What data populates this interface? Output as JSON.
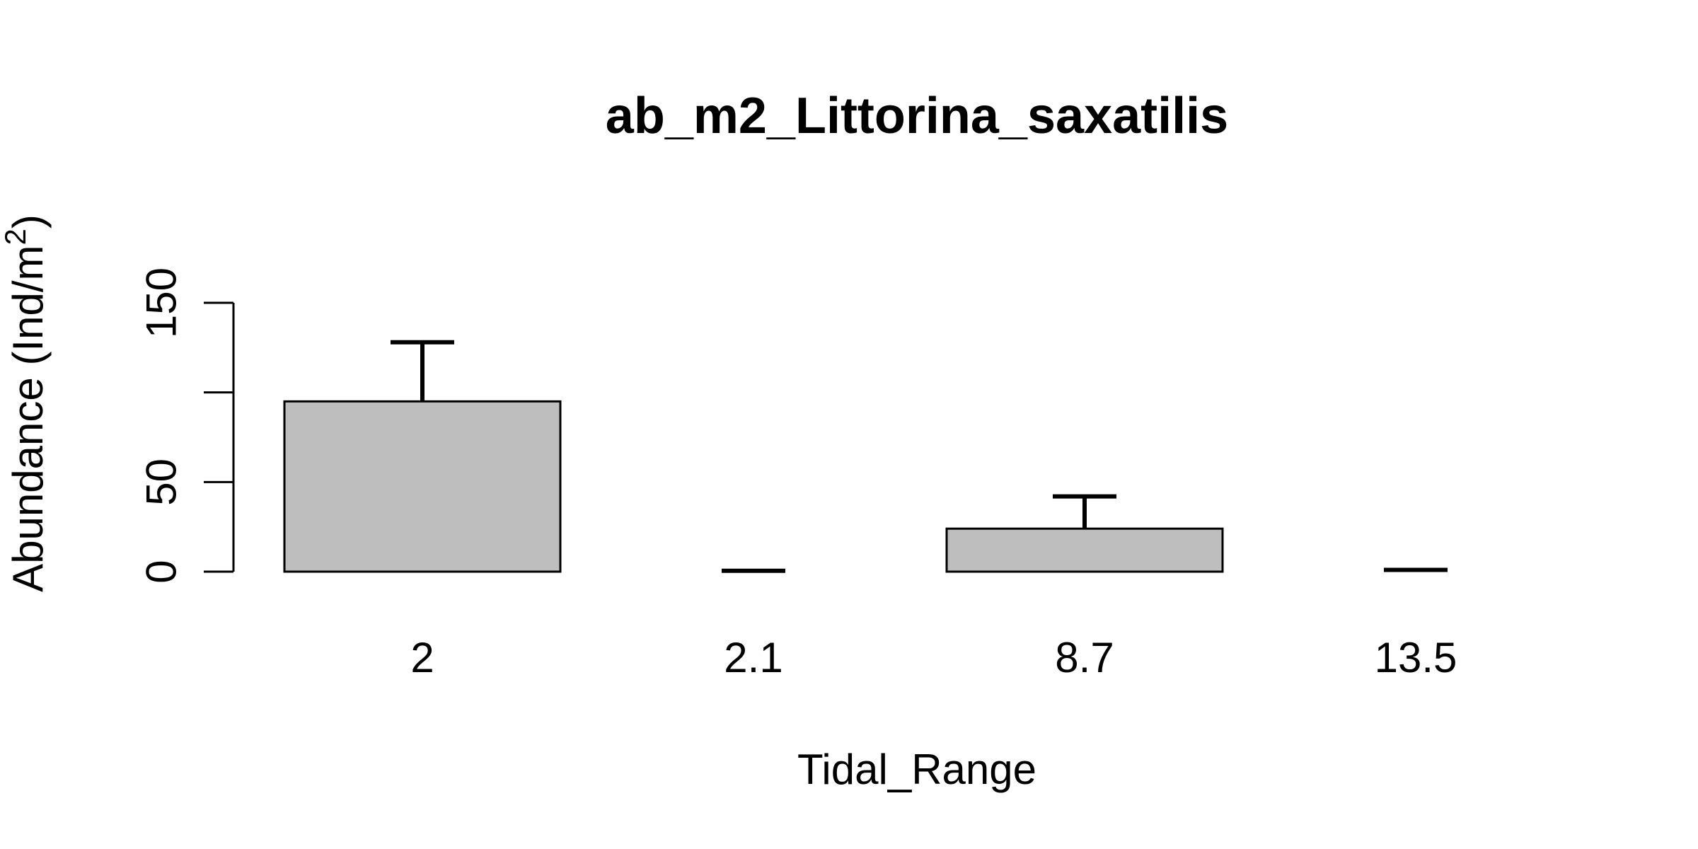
{
  "chart_data": {
    "type": "bar",
    "title": "ab_m2_Littorina_saxatilis",
    "xlabel": "Tidal_Range",
    "ylabel_main": "Abundance (Ind/m",
    "ylabel_sup": "2",
    "ylabel_close": ")",
    "categories": [
      "2",
      "2.1",
      "8.7",
      "13.5"
    ],
    "values": [
      95,
      0,
      24,
      0
    ],
    "error_upper": [
      128,
      0.5,
      42,
      1
    ],
    "ylim": [
      0,
      150
    ],
    "yticks": [
      0,
      50,
      100,
      150
    ],
    "ytick_labels": [
      "0",
      "50",
      "",
      "150"
    ],
    "grid": false,
    "colors": {
      "bar_fill": "#bebebe",
      "bar_stroke": "#000000"
    }
  }
}
